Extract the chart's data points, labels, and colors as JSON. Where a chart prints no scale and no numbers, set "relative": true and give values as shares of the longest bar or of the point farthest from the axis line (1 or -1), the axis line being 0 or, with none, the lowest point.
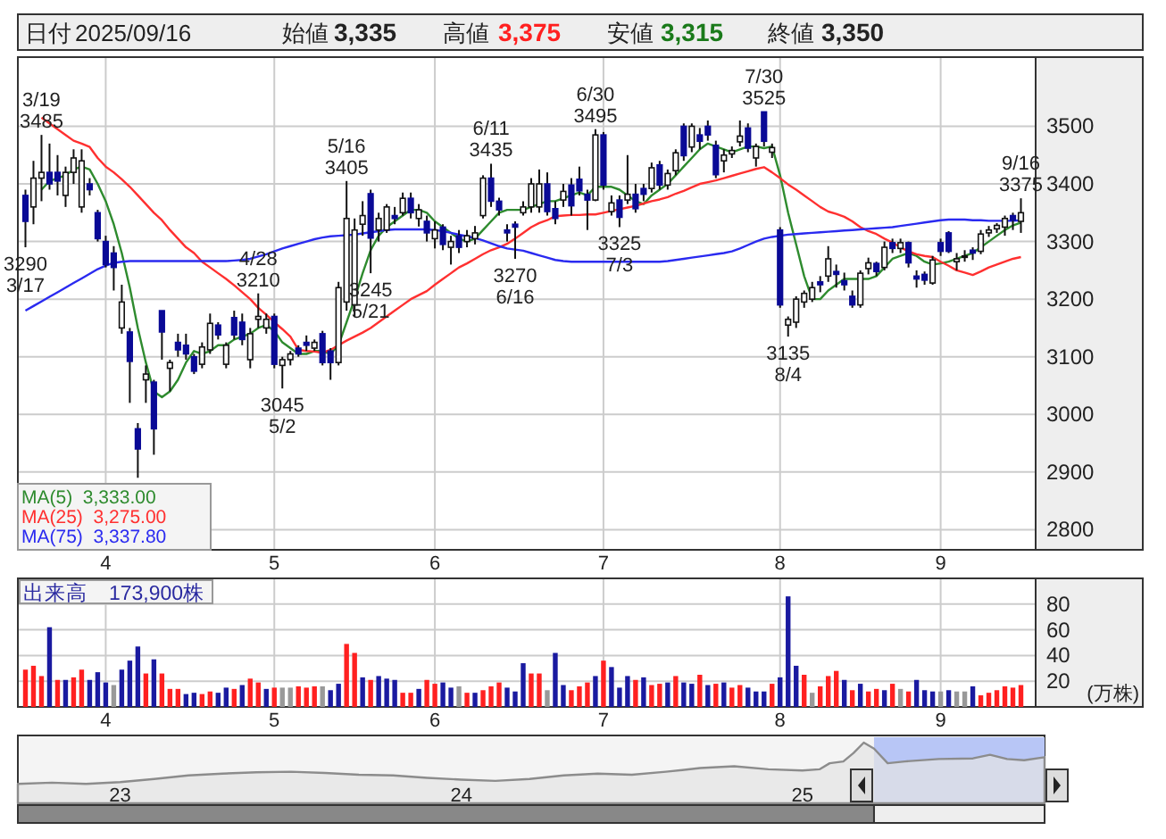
{
  "chart_data": [
    {
      "type": "other",
      "annotations": [
        "日付",
        "2025/09/16",
        "始値",
        "3,335",
        "高値",
        "3,375",
        "安値",
        "3,315",
        "終値",
        "3,350"
      ]
    },
    {
      "type": "candlestick",
      "categories": [
        null,
        null,
        null,
        null,
        null,
        null,
        null,
        null,
        null,
        null,
        "4",
        null,
        null,
        null,
        null,
        null,
        null,
        null,
        null,
        null,
        null,
        null,
        null,
        null,
        null,
        null,
        null,
        null,
        null,
        null,
        null,
        "5",
        null,
        null,
        null,
        null,
        null,
        null,
        null,
        null,
        null,
        null,
        null,
        null,
        null,
        null,
        null,
        null,
        null,
        null,
        null,
        "6",
        null,
        null,
        null,
        null,
        null,
        null,
        null,
        null,
        null,
        null,
        null,
        null,
        null,
        null,
        null,
        null,
        null,
        null,
        null,
        null,
        "7",
        null,
        null,
        null,
        null,
        null,
        null,
        null,
        null,
        null,
        null,
        null,
        null,
        null,
        null,
        null,
        null,
        null,
        null,
        null,
        null,
        null,
        "8",
        null,
        null,
        null,
        null,
        null,
        null,
        null,
        null,
        null,
        null,
        null,
        null,
        null,
        null,
        null,
        null,
        null,
        null,
        null,
        "9",
        null,
        null,
        null,
        null,
        null,
        null,
        null,
        null,
        null,
        null
      ],
      "ohlc": [
        [
          3380,
          3390,
          3290,
          3335
        ],
        [
          3360,
          3440,
          3330,
          3410
        ],
        [
          3410,
          3485,
          3370,
          3420
        ],
        [
          3420,
          3470,
          3390,
          3400
        ],
        [
          3420,
          3450,
          3380,
          3405
        ],
        [
          3380,
          3430,
          3360,
          3420
        ],
        [
          3420,
          3460,
          3400,
          3445
        ],
        [
          3360,
          3460,
          3350,
          3440
        ],
        [
          3400,
          3410,
          3380,
          3390
        ],
        [
          3350,
          3355,
          3300,
          3305
        ],
        [
          3300,
          3310,
          3255,
          3260
        ],
        [
          3280,
          3292,
          3215,
          3255
        ],
        [
          3150,
          3225,
          3140,
          3195
        ],
        [
          3143,
          3150,
          3020,
          3092
        ],
        [
          2975,
          2985,
          2890,
          2940
        ],
        [
          3060,
          3085,
          3020,
          3070
        ],
        [
          3056,
          3060,
          2930,
          2975
        ],
        [
          3180,
          3180,
          3095,
          3143
        ],
        [
          3080,
          3095,
          3040,
          3090
        ],
        [
          3125,
          3140,
          3100,
          3112
        ],
        [
          3120,
          3140,
          3095,
          3105
        ],
        [
          3100,
          3105,
          3070,
          3075
        ],
        [
          3087,
          3125,
          3080,
          3117
        ],
        [
          3112,
          3175,
          3105,
          3158
        ],
        [
          3155,
          3160,
          3130,
          3138
        ],
        [
          3087,
          3125,
          3080,
          3120
        ],
        [
          3168,
          3180,
          3130,
          3138
        ],
        [
          3160,
          3175,
          3120,
          3130
        ],
        [
          3095,
          3150,
          3080,
          3140
        ],
        [
          3165,
          3210,
          3150,
          3170
        ],
        [
          3150,
          3175,
          3140,
          3165
        ],
        [
          3170,
          3175,
          3080,
          3087
        ],
        [
          3085,
          3100,
          3045,
          3095
        ],
        [
          3095,
          3110,
          3085,
          3105
        ],
        [
          3115,
          3120,
          3100,
          3105
        ],
        [
          3125,
          3137,
          3110,
          3120
        ],
        [
          3115,
          3130,
          3110,
          3125
        ],
        [
          3140,
          3145,
          3085,
          3090
        ],
        [
          3110,
          3115,
          3060,
          3090
        ],
        [
          3090,
          3230,
          3085,
          3220
        ],
        [
          3195,
          3405,
          3180,
          3340
        ],
        [
          3190,
          3340,
          3170,
          3320
        ],
        [
          3330,
          3370,
          3310,
          3345
        ],
        [
          3383,
          3390,
          3245,
          3306
        ],
        [
          3320,
          3350,
          3300,
          3340
        ],
        [
          3320,
          3365,
          3315,
          3360
        ],
        [
          3345,
          3360,
          3330,
          3340
        ],
        [
          3350,
          3385,
          3345,
          3375
        ],
        [
          3375,
          3385,
          3340,
          3350
        ],
        [
          3340,
          3365,
          3326,
          3355
        ],
        [
          3335,
          3345,
          3300,
          3315
        ],
        [
          3305,
          3335,
          3288,
          3320
        ],
        [
          3325,
          3330,
          3285,
          3295
        ],
        [
          3290,
          3310,
          3260,
          3300
        ],
        [
          3310,
          3320,
          3280,
          3290
        ],
        [
          3300,
          3320,
          3290,
          3310
        ],
        [
          3305,
          3327,
          3295,
          3315
        ],
        [
          3345,
          3415,
          3340,
          3410
        ],
        [
          3410,
          3435,
          3360,
          3370
        ],
        [
          3370,
          3376,
          3345,
          3355
        ],
        [
          3320,
          3330,
          3300,
          3315
        ],
        [
          3330,
          3335,
          3270,
          3325
        ],
        [
          3350,
          3370,
          3345,
          3360
        ],
        [
          3360,
          3410,
          3350,
          3400
        ],
        [
          3360,
          3425,
          3350,
          3400
        ],
        [
          3400,
          3420,
          3345,
          3352
        ],
        [
          3357,
          3370,
          3330,
          3340
        ],
        [
          3372,
          3400,
          3360,
          3387
        ],
        [
          3398,
          3410,
          3345,
          3362
        ],
        [
          3408,
          3430,
          3380,
          3388
        ],
        [
          3382,
          3390,
          3320,
          3372
        ],
        [
          3372,
          3495,
          3370,
          3485
        ],
        [
          3485,
          3490,
          3390,
          3398
        ],
        [
          3352,
          3380,
          3345,
          3367
        ],
        [
          3372,
          3380,
          3325,
          3342
        ],
        [
          3372,
          3450,
          3365,
          3382
        ],
        [
          3382,
          3400,
          3350,
          3357
        ],
        [
          3392,
          3400,
          3370,
          3382
        ],
        [
          3392,
          3437,
          3385,
          3428
        ],
        [
          3433,
          3440,
          3390,
          3398
        ],
        [
          3398,
          3425,
          3390,
          3418
        ],
        [
          3423,
          3460,
          3415,
          3454
        ],
        [
          3500,
          3505,
          3440,
          3449
        ],
        [
          3464,
          3505,
          3455,
          3500
        ],
        [
          3485,
          3497,
          3460,
          3474
        ],
        [
          3500,
          3510,
          3475,
          3485
        ],
        [
          3467,
          3475,
          3410,
          3416
        ],
        [
          3440,
          3460,
          3420,
          3450
        ],
        [
          3452,
          3465,
          3445,
          3458
        ],
        [
          3473,
          3510,
          3465,
          3483
        ],
        [
          3497,
          3505,
          3455,
          3462
        ],
        [
          3445,
          3470,
          3430,
          3465
        ],
        [
          3525,
          3525,
          3465,
          3474
        ],
        [
          3455,
          3470,
          3445,
          3463
        ],
        [
          3320,
          3325,
          3185,
          3190
        ],
        [
          3155,
          3170,
          3135,
          3165
        ],
        [
          3160,
          3205,
          3150,
          3200
        ],
        [
          3195,
          3215,
          3185,
          3210
        ],
        [
          3200,
          3230,
          3195,
          3220
        ],
        [
          3230,
          3240,
          3212,
          3225
        ],
        [
          3240,
          3292,
          3230,
          3270
        ],
        [
          3248,
          3260,
          3220,
          3243
        ],
        [
          3232,
          3246,
          3215,
          3225
        ],
        [
          3205,
          3215,
          3185,
          3190
        ],
        [
          3190,
          3250,
          3185,
          3245
        ],
        [
          3253,
          3272,
          3243,
          3263
        ],
        [
          3262,
          3265,
          3240,
          3248
        ],
        [
          3255,
          3300,
          3250,
          3290
        ],
        [
          3298,
          3305,
          3280,
          3288
        ],
        [
          3288,
          3305,
          3280,
          3298
        ],
        [
          3298,
          3300,
          3255,
          3263
        ],
        [
          3240,
          3250,
          3220,
          3235
        ],
        [
          3243,
          3248,
          3225,
          3233
        ],
        [
          3228,
          3275,
          3225,
          3268
        ],
        [
          3298,
          3305,
          3275,
          3283
        ],
        [
          3315,
          3318,
          3280,
          3283
        ],
        [
          3265,
          3280,
          3250,
          3270
        ],
        [
          3275,
          3285,
          3265,
          3275
        ],
        [
          3285,
          3290,
          3268,
          3280
        ],
        [
          3283,
          3320,
          3278,
          3313
        ],
        [
          3315,
          3327,
          3308,
          3320
        ],
        [
          3322,
          3332,
          3315,
          3328
        ],
        [
          3325,
          3345,
          3310,
          3340
        ],
        [
          3345,
          3350,
          3320,
          3337
        ],
        [
          3335,
          3375,
          3315,
          3350
        ]
      ],
      "series": [
        {
          "type": "line",
          "name": "MA(5)  3,333.00",
          "color": "#2e8b2e",
          "values": [
            null,
            null,
            3390,
            3405,
            3410,
            3415,
            3425,
            3430,
            3425,
            3400,
            3370,
            3330,
            3280,
            3220,
            3150,
            3090,
            3040,
            3030,
            3040,
            3060,
            3090,
            3110,
            3105,
            3110,
            3120,
            3120,
            3130,
            3135,
            3140,
            3150,
            3155,
            3145,
            3125,
            3115,
            3105,
            3105,
            3110,
            3110,
            3105,
            3120,
            3160,
            3200,
            3245,
            3285,
            3310,
            3325,
            3335,
            3345,
            3355,
            3355,
            3350,
            3335,
            3325,
            3315,
            3305,
            3300,
            3305,
            3320,
            3335,
            3350,
            3355,
            3355,
            3355,
            3360,
            3365,
            3370,
            3370,
            3375,
            3380,
            3385,
            3380,
            3395,
            3395,
            3395,
            3390,
            3380,
            3370,
            3365,
            3380,
            3390,
            3400,
            3415,
            3430,
            3445,
            3460,
            3470,
            3465,
            3460,
            3455,
            3460,
            3465,
            3465,
            3462,
            3465,
            3415,
            3350,
            3295,
            3240,
            3200,
            3200,
            3215,
            3225,
            3235,
            3235,
            3235,
            3235,
            3240,
            3255,
            3270,
            3275,
            3280,
            3275,
            3265,
            3260,
            3262,
            3265,
            3270,
            3275,
            3280,
            3290,
            3300,
            3310,
            3320,
            3328,
            3333
          ]
        },
        {
          "type": "line",
          "name": "MA(25)  3,275.00",
          "color": "#ff3030",
          "values": [
            null,
            null,
            3515,
            3505,
            3495,
            3485,
            3475,
            3470,
            3464,
            3445,
            3430,
            3420,
            3408,
            3395,
            3380,
            3365,
            3350,
            3337,
            3320,
            3305,
            3290,
            3280,
            3265,
            3255,
            3245,
            3235,
            3224,
            3212,
            3200,
            3185,
            3173,
            3160,
            3148,
            3135,
            3112,
            3110,
            3109,
            3107,
            3112,
            3120,
            3128,
            3135,
            3142,
            3150,
            3160,
            3170,
            3180,
            3190,
            3200,
            3207,
            3214,
            3225,
            3235,
            3245,
            3255,
            3262,
            3270,
            3278,
            3285,
            3290,
            3296,
            3305,
            3315,
            3325,
            3332,
            3337,
            3344,
            3345,
            3346,
            3346,
            3347,
            3347,
            3350,
            3353,
            3356,
            3359,
            3362,
            3366,
            3370,
            3373,
            3377,
            3383,
            3388,
            3394,
            3400,
            3403,
            3406,
            3410,
            3414,
            3418,
            3422,
            3426,
            3429,
            3420,
            3410,
            3399,
            3390,
            3380,
            3370,
            3360,
            3352,
            3348,
            3343,
            3335,
            3325,
            3318,
            3313,
            3305,
            3298,
            3290,
            3283,
            3278,
            3275,
            3273,
            3265,
            3258,
            3250,
            3246,
            3242,
            3248,
            3255,
            3260,
            3265,
            3270,
            3273
          ]
        },
        {
          "type": "line",
          "name": "MA(75)  3,337.80",
          "color": "#2a2af0",
          "values": [
            3180,
            3188,
            3196,
            3204,
            3212,
            3220,
            3228,
            3236,
            3244,
            3252,
            3258,
            3263,
            3265,
            3266,
            3266,
            3266,
            3266,
            3266,
            3266,
            3266,
            3266,
            3266,
            3266,
            3266,
            3266,
            3266,
            3267,
            3268,
            3270,
            3274,
            3278,
            3283,
            3288,
            3292,
            3296,
            3300,
            3304,
            3307,
            3309,
            3310,
            3311,
            3312,
            3314,
            3316,
            3318,
            3320,
            3321,
            3321,
            3321,
            3321,
            3321,
            3320,
            3318,
            3315,
            3312,
            3309,
            3306,
            3302,
            3297,
            3292,
            3288,
            3286,
            3284,
            3280,
            3276,
            3272,
            3268,
            3266,
            3265,
            3265,
            3265,
            3265,
            3265,
            3265,
            3265,
            3265,
            3265,
            3265,
            3265,
            3265,
            3266,
            3268,
            3270,
            3272,
            3274,
            3276,
            3278,
            3280,
            3283,
            3288,
            3294,
            3300,
            3305,
            3308,
            3310,
            3312,
            3313,
            3314,
            3315,
            3316,
            3317,
            3318,
            3319,
            3320,
            3321,
            3322,
            3323,
            3324,
            3325,
            3327,
            3329,
            3331,
            3333,
            3335,
            3337,
            3338,
            3338,
            3338,
            3337,
            3337,
            3336,
            3336,
            3336,
            3336,
            3337
          ]
        }
      ],
      "ylim": [
        2765,
        3620
      ],
      "yticks": [
        2800,
        2900,
        3000,
        3100,
        3200,
        3300,
        3400,
        3500
      ],
      "grid": true,
      "legend": "bottom left",
      "annotations": [
        {
          "text": "3/19\n3485",
          "y": 3485
        },
        {
          "text": "3290\n3/17",
          "y": 3290
        },
        {
          "text": "4/28\n3210",
          "y": 3210
        },
        {
          "text": "3045\n5/2",
          "y": 3045
        },
        {
          "text": "5/16\n3405",
          "y": 3405
        },
        {
          "text": "3245\n5/21",
          "y": 3245
        },
        {
          "text": "6/11\n3435",
          "y": 3435
        },
        {
          "text": "3270\n6/16",
          "y": 3270
        },
        {
          "text": "6/30\n3495",
          "y": 3495
        },
        {
          "text": "3325\n7/3",
          "y": 3325
        },
        {
          "text": "7/30\n3525",
          "y": 3525
        },
        {
          "text": "3135\n8/4",
          "y": 3135
        },
        {
          "text": "9/16\n3375",
          "y": 3375
        }
      ]
    },
    {
      "type": "bar",
      "categories": [
        null,
        null,
        null,
        null,
        null,
        null,
        null,
        null,
        null,
        null,
        "4",
        null,
        null,
        null,
        null,
        null,
        null,
        null,
        null,
        null,
        null,
        null,
        null,
        null,
        null,
        null,
        null,
        null,
        null,
        null,
        null,
        "5",
        null,
        null,
        null,
        null,
        null,
        null,
        null,
        null,
        null,
        null,
        null,
        null,
        null,
        null,
        null,
        null,
        null,
        null,
        null,
        "6",
        null,
        null,
        null,
        null,
        null,
        null,
        null,
        null,
        null,
        null,
        null,
        null,
        null,
        null,
        null,
        null,
        null,
        null,
        null,
        null,
        "7",
        null,
        null,
        null,
        null,
        null,
        null,
        null,
        null,
        null,
        null,
        null,
        null,
        null,
        null,
        null,
        null,
        null,
        null,
        null,
        null,
        null,
        "8",
        null,
        null,
        null,
        null,
        null,
        null,
        null,
        null,
        null,
        null,
        null,
        null,
        null,
        null,
        null,
        null,
        null,
        null,
        null,
        "9",
        null,
        null,
        null,
        null,
        null,
        null,
        null,
        null,
        null,
        null
      ],
      "values": [
        29,
        32,
        24,
        62,
        21,
        21,
        23,
        29,
        21,
        27,
        19,
        17,
        29,
        36,
        47,
        26,
        37,
        26,
        14,
        14,
        10,
        11,
        10,
        12,
        11,
        15,
        14,
        17,
        22,
        19,
        14,
        15,
        15,
        15,
        16,
        15,
        16,
        16,
        13,
        18,
        49,
        42,
        23,
        21,
        24,
        22,
        21,
        11,
        11,
        14,
        21,
        18,
        19,
        15,
        16,
        11,
        11,
        13,
        16,
        19,
        15,
        12,
        34,
        26,
        26,
        13,
        42,
        17,
        13,
        16,
        19,
        24,
        36,
        31,
        15,
        24,
        21,
        23,
        17,
        18,
        19,
        24,
        19,
        18,
        25,
        17,
        18,
        19,
        15,
        17,
        15,
        12,
        12,
        18,
        23,
        86,
        32,
        25,
        11,
        16,
        24,
        28,
        21,
        13,
        18,
        12,
        14,
        13,
        18,
        14,
        12,
        21,
        13,
        12,
        12,
        13,
        12,
        12,
        16,
        9,
        11,
        13,
        16,
        15,
        17
      ],
      "colors": [
        "#ff2020",
        "#ff2020",
        "#ff2020",
        "#1a1aa0",
        "#ff2020",
        "#1a1aa0",
        "#ff2020",
        "#ff2020",
        "#1a1aa0",
        "#1a1aa0",
        "#1a1aa0",
        "#999999",
        "#1a1aa0",
        "#1a1aa0",
        "#1a1aa0",
        "#ff2020",
        "#1a1aa0",
        "#ff2020",
        "#ff2020",
        "#ff2020",
        "#1a1aa0",
        "#1a1aa0",
        "#ff2020",
        "#ff2020",
        "#1a1aa0",
        "#1a1aa0",
        "#ff2020",
        "#1a1aa0",
        "#ff2020",
        "#ff2020",
        "#1a1aa0",
        "#ff2020",
        "#999999",
        "#999999",
        "#ff2020",
        "#ff2020",
        "#ff2020",
        "#999999",
        "#1a1aa0",
        "#1a1aa0",
        "#ff2020",
        "#ff2020",
        "#1a1aa0",
        "#ff2020",
        "#1a1aa0",
        "#1a1aa0",
        "#1a1aa0",
        "#ff2020",
        "#ff2020",
        "#1a1aa0",
        "#ff2020",
        "#ff2020",
        "#1a1aa0",
        "#1a1aa0",
        "#999999",
        "#ff2020",
        "#1a1aa0",
        "#ff2020",
        "#ff2020",
        "#ff2020",
        "#1a1aa0",
        "#1a1aa0",
        "#1a1aa0",
        "#ff2020",
        "#ff2020",
        "#999999",
        "#1a1aa0",
        "#1a1aa0",
        "#ff2020",
        "#ff2020",
        "#ff2020",
        "#1a1aa0",
        "#ff2020",
        "#1a1aa0",
        "#1a1aa0",
        "#1a1aa0",
        "#ff2020",
        "#1a1aa0",
        "#ff2020",
        "#ff2020",
        "#1a1aa0",
        "#ff2020",
        "#1a1aa0",
        "#1a1aa0",
        "#ff2020",
        "#1a1aa0",
        "#ff2020",
        "#1a1aa0",
        "#ff2020",
        "#ff2020",
        "#1a1aa0",
        "#1a1aa0",
        "#1a1aa0",
        "#ff2020",
        "#1a1aa0",
        "#1a1aa0",
        "#1a1aa0",
        "#ff2020",
        "#999999",
        "#ff2020",
        "#ff2020",
        "#ff2020",
        "#1a1aa0",
        "#ff2020",
        "#1a1aa0",
        "#ff2020",
        "#ff2020",
        "#1a1aa0",
        "#ff2020",
        "#999999",
        "#ff2020",
        "#1a1aa0",
        "#1a1aa0",
        "#1a1aa0",
        "#999999",
        "#1a1aa0",
        "#999999",
        "#999999",
        "#1a1aa0",
        "#ff2020",
        "#ff2020",
        "#ff2020",
        "#ff2020",
        "#ff2020",
        "#ff2020"
      ],
      "ylim": [
        0,
        100
      ],
      "yticks": [
        20,
        40,
        60,
        80
      ],
      "grid": true,
      "ylabel": "(万株)",
      "annotations": [
        "出来高　173,900株"
      ]
    },
    {
      "type": "area",
      "relative": true,
      "color": "#8c8c8c",
      "x": [
        2022.7,
        2022.8,
        2022.9,
        2023.0,
        2023.1,
        2023.2,
        2023.3,
        2023.4,
        2023.5,
        2023.6,
        2023.7,
        2023.8,
        2023.9,
        2024.0,
        2024.1,
        2024.2,
        2024.3,
        2024.4,
        2024.5,
        2024.6,
        2024.7,
        2024.8,
        2024.9,
        2025.0,
        2025.05,
        2025.08,
        2025.12,
        2025.15,
        2025.18,
        2025.21,
        2025.25,
        2025.3,
        2025.4,
        2025.5,
        2025.55,
        2025.6,
        2025.65,
        2025.71
      ],
      "values": [
        0.32,
        0.34,
        0.32,
        0.35,
        0.4,
        0.46,
        0.49,
        0.51,
        0.52,
        0.5,
        0.47,
        0.46,
        0.42,
        0.39,
        0.37,
        0.4,
        0.46,
        0.49,
        0.47,
        0.52,
        0.58,
        0.61,
        0.56,
        0.54,
        0.56,
        0.66,
        0.69,
        0.83,
        1.0,
        0.9,
        0.66,
        0.69,
        0.73,
        0.74,
        0.8,
        0.73,
        0.71,
        0.76
      ],
      "xlim": [
        2022.7,
        2025.71
      ],
      "xticks": [
        {
          "value": 2023,
          "label": "23"
        },
        {
          "value": 2024,
          "label": "24"
        },
        {
          "value": 2025,
          "label": "25"
        }
      ],
      "bands": [
        {
          "axis": "x",
          "from": 2025.21,
          "to": 2025.71,
          "color": "#b8c6f6"
        }
      ]
    }
  ]
}
